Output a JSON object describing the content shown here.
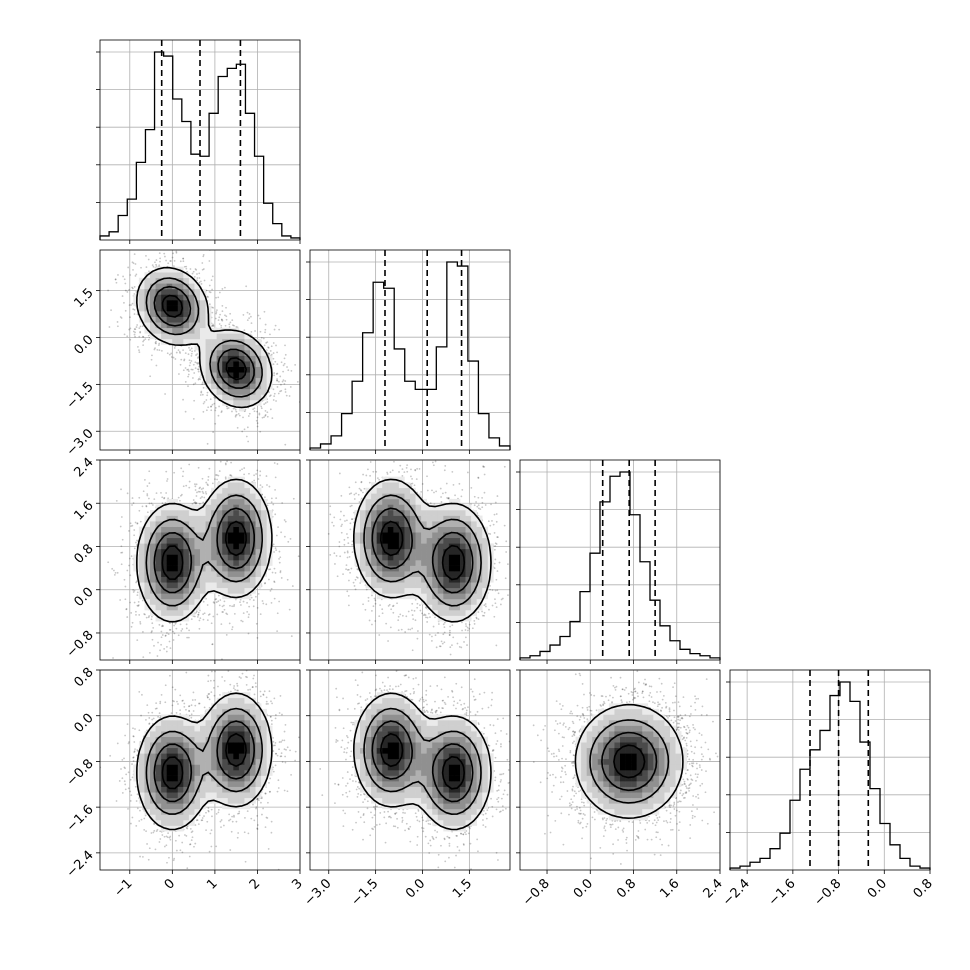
{
  "chart_data": {
    "type": "corner",
    "grid": true,
    "n_params": 4,
    "params": [
      {
        "range": [
          -1.7,
          3.0
        ],
        "ticks": [
          -1,
          0,
          1,
          2,
          3
        ],
        "tick_labels": [
          "−1",
          "0",
          "1",
          "2",
          "3"
        ],
        "quantiles": [
          -0.25,
          0.65,
          1.6
        ],
        "hist_bins": [
          0.02,
          0.04,
          0.12,
          0.2,
          0.38,
          0.54,
          0.92,
          0.9,
          0.69,
          0.58,
          0.42,
          0.41,
          0.62,
          0.8,
          0.84,
          0.86,
          0.62,
          0.41,
          0.18,
          0.08,
          0.02,
          0.01
        ]
      },
      {
        "range": [
          -3.6,
          2.8
        ],
        "ticks": [
          -3.0,
          -1.5,
          0.0,
          1.5
        ],
        "tick_labels": [
          "−3.0",
          "−1.5",
          "0.0",
          "1.5"
        ],
        "quantiles": [
          -1.2,
          0.15,
          1.25
        ],
        "hist_bins": [
          0.01,
          0.03,
          0.07,
          0.18,
          0.34,
          0.58,
          0.83,
          0.8,
          0.5,
          0.34,
          0.3,
          0.3,
          0.51,
          0.93,
          0.91,
          0.44,
          0.18,
          0.06,
          0.02
        ]
      },
      {
        "range": [
          -1.3,
          2.4
        ],
        "ticks": [
          -0.8,
          0.0,
          0.8,
          1.6,
          2.4
        ],
        "tick_labels": [
          "−0.8",
          "0.0",
          "0.8",
          "1.6",
          "2.4"
        ],
        "quantiles": [
          0.23,
          0.72,
          1.2
        ],
        "hist_bins": [
          0.01,
          0.02,
          0.04,
          0.07,
          0.11,
          0.18,
          0.32,
          0.5,
          0.74,
          0.86,
          0.88,
          0.68,
          0.46,
          0.28,
          0.16,
          0.09,
          0.05,
          0.03,
          0.02,
          0.01
        ]
      },
      {
        "range": [
          -2.7,
          0.8
        ],
        "ticks": [
          -2.4,
          -1.6,
          -0.8,
          0.0,
          0.8
        ],
        "tick_labels": [
          "−2.4",
          "−1.6",
          "−0.8",
          "0.0",
          "0.8"
        ],
        "quantiles": [
          -1.3,
          -0.8,
          -0.28
        ],
        "hist_bins": [
          0.01,
          0.02,
          0.04,
          0.06,
          0.11,
          0.19,
          0.36,
          0.52,
          0.62,
          0.72,
          0.9,
          0.97,
          0.87,
          0.66,
          0.42,
          0.24,
          0.13,
          0.06,
          0.02,
          0.01
        ]
      }
    ],
    "pairs": [
      {
        "x": 0,
        "y": 1,
        "modes": [
          {
            "cx": 0.0,
            "cy": 1.0,
            "sx": 0.42,
            "sy": 0.62,
            "rho": -0.15,
            "w": 0.5
          },
          {
            "cx": 1.5,
            "cy": -1.0,
            "sx": 0.42,
            "sy": 0.62,
            "rho": -0.15,
            "w": 0.5
          }
        ]
      },
      {
        "x": 0,
        "y": 2,
        "modes": [
          {
            "cx": 0.0,
            "cy": 0.5,
            "sx": 0.42,
            "sy": 0.55,
            "rho": 0.0,
            "w": 0.5
          },
          {
            "cx": 1.5,
            "cy": 0.95,
            "sx": 0.42,
            "sy": 0.55,
            "rho": 0.0,
            "w": 0.5
          }
        ]
      },
      {
        "x": 1,
        "y": 2,
        "modes": [
          {
            "cx": -1.0,
            "cy": 0.95,
            "sx": 0.6,
            "sy": 0.55,
            "rho": 0.0,
            "w": 0.5
          },
          {
            "cx": 1.0,
            "cy": 0.5,
            "sx": 0.6,
            "sy": 0.55,
            "rho": 0.0,
            "w": 0.5
          }
        ]
      },
      {
        "x": 0,
        "y": 3,
        "modes": [
          {
            "cx": 0.0,
            "cy": -1.0,
            "sx": 0.42,
            "sy": 0.5,
            "rho": 0.0,
            "w": 0.5
          },
          {
            "cx": 1.5,
            "cy": -0.6,
            "sx": 0.42,
            "sy": 0.5,
            "rho": 0.0,
            "w": 0.5
          }
        ]
      },
      {
        "x": 1,
        "y": 3,
        "modes": [
          {
            "cx": -1.0,
            "cy": -0.6,
            "sx": 0.6,
            "sy": 0.5,
            "rho": 0.0,
            "w": 0.5
          },
          {
            "cx": 1.0,
            "cy": -1.0,
            "sx": 0.6,
            "sy": 0.5,
            "rho": 0.0,
            "w": 0.5
          }
        ]
      },
      {
        "x": 2,
        "y": 3,
        "modes": [
          {
            "cx": 0.72,
            "cy": -0.8,
            "sx": 0.5,
            "sy": 0.5,
            "rho": 0.0,
            "w": 1.0
          }
        ]
      }
    ]
  }
}
